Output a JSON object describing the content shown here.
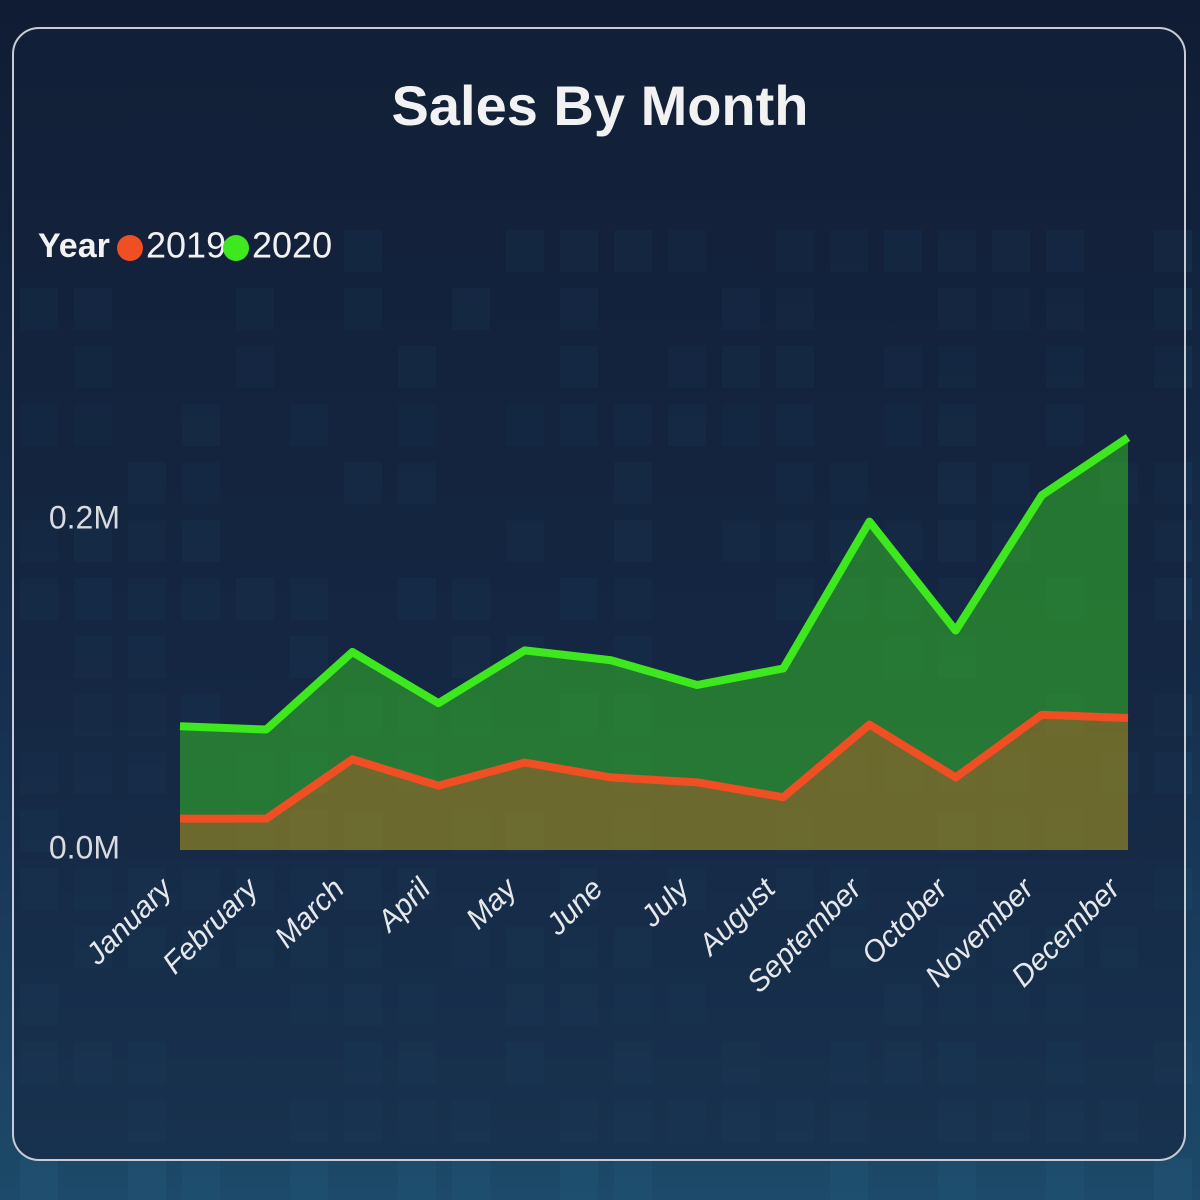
{
  "chart_data": {
    "type": "area",
    "title": "Sales By Month",
    "legend_title": "Year",
    "categories": [
      "January",
      "February",
      "March",
      "April",
      "May",
      "June",
      "July",
      "August",
      "September",
      "October",
      "November",
      "December"
    ],
    "series": [
      {
        "name": "2019",
        "color": "#f04e23",
        "values": [
          19000,
          19000,
          55000,
          39000,
          53000,
          44000,
          41000,
          32000,
          76000,
          44000,
          82000,
          80000
        ]
      },
      {
        "name": "2020",
        "color": "#3ee81e",
        "values": [
          75000,
          73000,
          120000,
          89000,
          121000,
          115000,
          100000,
          110000,
          199000,
          133000,
          215000,
          250000
        ]
      }
    ],
    "ylim": [
      0,
      260000
    ],
    "yticks": [
      {
        "value": 0,
        "label": "0.0M"
      },
      {
        "value": 200000,
        "label": "0.2M"
      }
    ],
    "legend": "top-left",
    "grid": false
  }
}
